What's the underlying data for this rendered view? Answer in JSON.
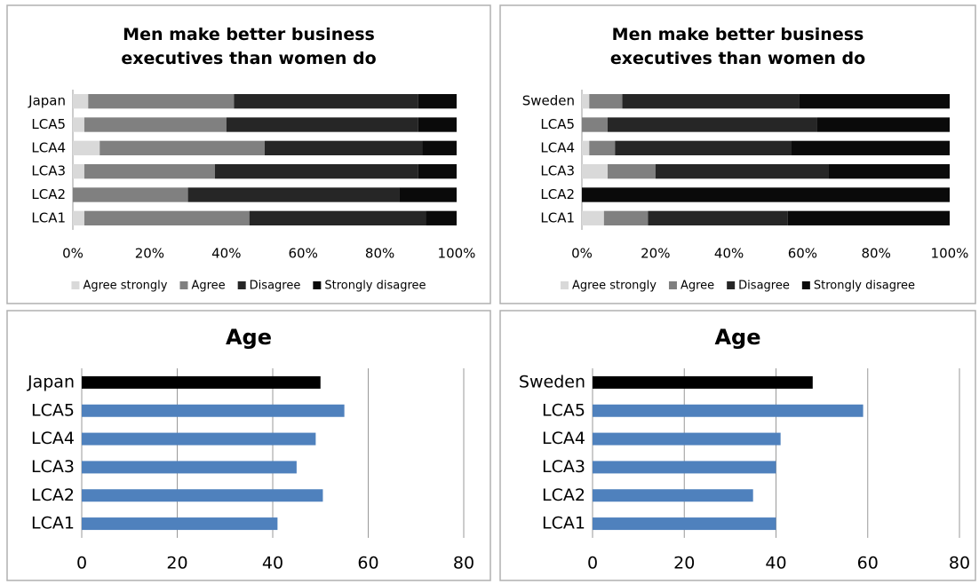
{
  "chart_data": [
    {
      "type": "stacked-bar",
      "title": "Men make better business executives than women do",
      "categories": [
        "Japan",
        "LCA5",
        "LCA4",
        "LCA3",
        "LCA2",
        "LCA1"
      ],
      "series": [
        {
          "name": "Agree strongly",
          "color": "#d9d9d9",
          "values": [
            4,
            3,
            7,
            3,
            0,
            3
          ]
        },
        {
          "name": "Agree",
          "color": "#808080",
          "values": [
            38,
            37,
            43,
            34,
            30,
            43
          ]
        },
        {
          "name": "Disagree",
          "color": "#262626",
          "values": [
            48,
            50,
            41,
            53,
            55,
            46
          ]
        },
        {
          "name": "Strongly disagree",
          "color": "#0a0a0a",
          "values": [
            10,
            10,
            9,
            10,
            15,
            8
          ]
        }
      ],
      "xlim": [
        0,
        100
      ],
      "xticks": [
        {
          "value": 0,
          "label": "0%"
        },
        {
          "value": 20,
          "label": "20%"
        },
        {
          "value": 40,
          "label": "40%"
        },
        {
          "value": 60,
          "label": "60%"
        },
        {
          "value": 80,
          "label": "80%"
        },
        {
          "value": 100,
          "label": "100%"
        }
      ],
      "legend": "bottom"
    },
    {
      "type": "stacked-bar",
      "title": "Men make better business executives than women do",
      "categories": [
        "Sweden",
        "LCA5",
        "LCA4",
        "LCA3",
        "LCA2",
        "LCA1"
      ],
      "series": [
        {
          "name": "Agree strongly",
          "color": "#d9d9d9",
          "values": [
            2,
            0,
            2,
            7,
            0,
            6
          ]
        },
        {
          "name": "Agree",
          "color": "#808080",
          "values": [
            9,
            7,
            7,
            13,
            0,
            12
          ]
        },
        {
          "name": "Disagree",
          "color": "#262626",
          "values": [
            48,
            57,
            48,
            47,
            0,
            38
          ]
        },
        {
          "name": "Strongly disagree",
          "color": "#0a0a0a",
          "values": [
            41,
            36,
            43,
            33,
            100,
            44
          ]
        }
      ],
      "xlim": [
        0,
        100
      ],
      "xticks": [
        {
          "value": 0,
          "label": "0%"
        },
        {
          "value": 20,
          "label": "20%"
        },
        {
          "value": 40,
          "label": "40%"
        },
        {
          "value": 60,
          "label": "60%"
        },
        {
          "value": 80,
          "label": "80%"
        },
        {
          "value": 100,
          "label": "100%"
        }
      ],
      "legend": "bottom"
    },
    {
      "type": "bar",
      "title": "Age",
      "categories": [
        "Japan",
        "LCA5",
        "LCA4",
        "LCA3",
        "LCA2",
        "LCA1"
      ],
      "values": [
        50,
        55,
        49,
        45,
        50.5,
        41
      ],
      "colors": [
        "#000000",
        "#4f81bd",
        "#4f81bd",
        "#4f81bd",
        "#4f81bd",
        "#4f81bd"
      ],
      "xlim": [
        0,
        80
      ],
      "xticks": [
        0,
        20,
        40,
        60,
        80
      ],
      "grid": true
    },
    {
      "type": "bar",
      "title": "Age",
      "categories": [
        "Sweden",
        "LCA5",
        "LCA4",
        "LCA3",
        "LCA2",
        "LCA1"
      ],
      "values": [
        48,
        59,
        41,
        40,
        35,
        40
      ],
      "colors": [
        "#000000",
        "#4f81bd",
        "#4f81bd",
        "#4f81bd",
        "#4f81bd",
        "#4f81bd"
      ],
      "xlim": [
        0,
        80
      ],
      "xticks": [
        0,
        20,
        40,
        60,
        80
      ],
      "grid": true
    }
  ]
}
